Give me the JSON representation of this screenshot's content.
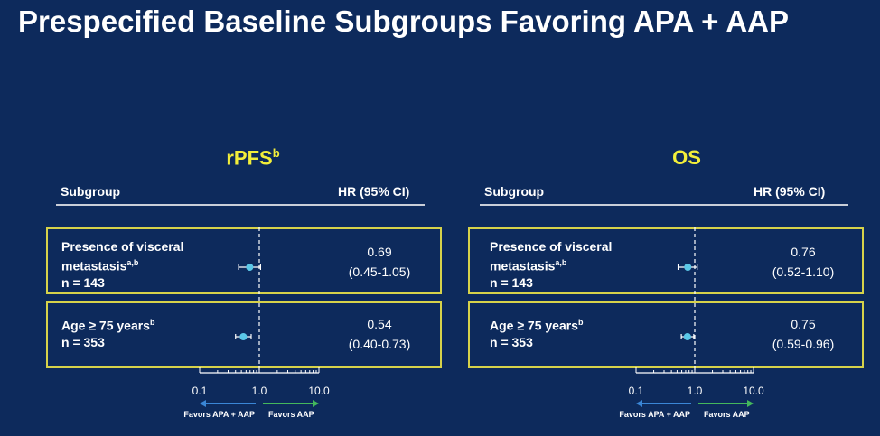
{
  "slide": {
    "title": "Prespecified Baseline Subgroups Favoring APA + AAP"
  },
  "colors": {
    "background": "#0d2a5c",
    "panel_title": "#f2ee3a",
    "box_border": "#d6d24a",
    "point": "#5bc8e8",
    "arrow_left": "#3a86d6",
    "arrow_right": "#44b85c"
  },
  "chart_data": [
    {
      "type": "scatter",
      "title": "rPFS",
      "title_superscript": "b",
      "column_headers": {
        "subgroup": "Subgroup",
        "hr": "HR (95% CI)"
      },
      "x_scale": "log",
      "xlim": [
        0.1,
        10.0
      ],
      "x_ticks": [
        "0.1",
        "1.0",
        "10.0"
      ],
      "reference_line": 1.0,
      "favors_left": "Favors APA + AAP",
      "favors_right": "Favors AAP",
      "rows": [
        {
          "label_line1": "Presence of visceral",
          "label_line2": "metastasis",
          "label_sup": "a,b",
          "n_label": "n = 143",
          "hr": 0.69,
          "ci_low": 0.45,
          "ci_high": 1.05,
          "hr_text": "0.69",
          "ci_text": "(0.45-1.05)"
        },
        {
          "label_line1": "Age ≥ 75 years",
          "label_line2": "",
          "label_sup": "b",
          "n_label": "n = 353",
          "hr": 0.54,
          "ci_low": 0.4,
          "ci_high": 0.73,
          "hr_text": "0.54",
          "ci_text": "(0.40-0.73)"
        }
      ]
    },
    {
      "type": "scatter",
      "title": "OS",
      "title_superscript": "",
      "column_headers": {
        "subgroup": "Subgroup",
        "hr": "HR (95% CI)"
      },
      "x_scale": "log",
      "xlim": [
        0.1,
        10.0
      ],
      "x_ticks": [
        "0.1",
        "1.0",
        "10.0"
      ],
      "reference_line": 1.0,
      "favors_left": "Favors APA + AAP",
      "favors_right": "Favors AAP",
      "rows": [
        {
          "label_line1": "Presence of visceral",
          "label_line2": "metastasis",
          "label_sup": "a,b",
          "n_label": "n = 143",
          "hr": 0.76,
          "ci_low": 0.52,
          "ci_high": 1.1,
          "hr_text": "0.76",
          "ci_text": "(0.52-1.10)"
        },
        {
          "label_line1": "Age ≥ 75 years",
          "label_line2": "",
          "label_sup": "b",
          "n_label": "n = 353",
          "hr": 0.75,
          "ci_low": 0.59,
          "ci_high": 0.96,
          "hr_text": "0.75",
          "ci_text": "(0.59-0.96)"
        }
      ]
    }
  ]
}
